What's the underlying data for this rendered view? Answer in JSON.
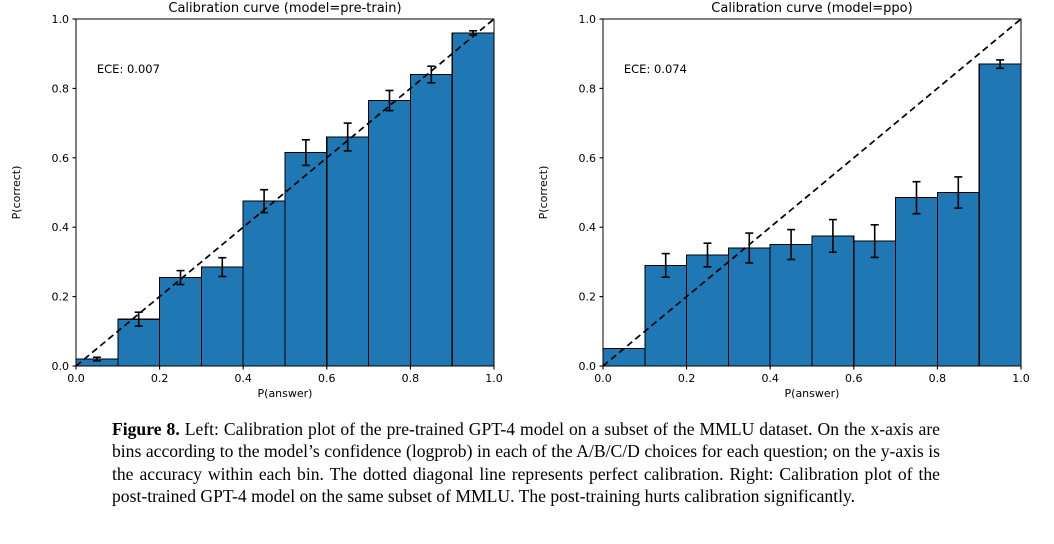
{
  "figure": {
    "caption_label": "Figure 8.",
    "caption_text": " Left: Calibration plot of the pre-trained GPT-4 model on a subset of the MMLU dataset. On the x-axis are bins according to the model’s confidence (logprob) in each of the A/B/C/D choices for each question; on the y-axis is the accuracy within each bin. The dotted diagonal line represents perfect calibration. Right: Calibration plot of the post-trained GPT-4 model on the same subset of MMLU. The post-training hurts calibration significantly."
  },
  "chart_data": [
    {
      "type": "bar",
      "title": "Calibration curve (model=pre-train)",
      "annotation": "ECE: 0.007",
      "xlabel": "P(answer)",
      "ylabel": "P(correct)",
      "xlim": [
        0.0,
        1.0
      ],
      "ylim": [
        0.0,
        1.0
      ],
      "ticks": [
        0.0,
        0.2,
        0.4,
        0.6,
        0.8,
        1.0
      ],
      "tick_labels": [
        "0.0",
        "0.2",
        "0.4",
        "0.6",
        "0.8",
        "1.0"
      ],
      "bin_edges": [
        0.0,
        0.1,
        0.2,
        0.3,
        0.4,
        0.5,
        0.6,
        0.7,
        0.8,
        0.9,
        1.0
      ],
      "values": [
        0.02,
        0.135,
        0.255,
        0.285,
        0.475,
        0.615,
        0.66,
        0.765,
        0.84,
        0.96
      ],
      "errors": [
        0.005,
        0.02,
        0.02,
        0.027,
        0.033,
        0.037,
        0.04,
        0.029,
        0.024,
        0.006
      ],
      "diagonal": true,
      "grid": false,
      "bar_color": "#1f77b4",
      "bar_edge_color": "#000000",
      "line_color": "#000000"
    },
    {
      "type": "bar",
      "title": "Calibration curve (model=ppo)",
      "annotation": "ECE: 0.074",
      "xlabel": "P(answer)",
      "ylabel": "P(correct)",
      "xlim": [
        0.0,
        1.0
      ],
      "ylim": [
        0.0,
        1.0
      ],
      "ticks": [
        0.0,
        0.2,
        0.4,
        0.6,
        0.8,
        1.0
      ],
      "tick_labels": [
        "0.0",
        "0.2",
        "0.4",
        "0.6",
        "0.8",
        "1.0"
      ],
      "bin_edges": [
        0.0,
        0.1,
        0.2,
        0.3,
        0.4,
        0.5,
        0.6,
        0.7,
        0.8,
        0.9,
        1.0
      ],
      "values": [
        0.05,
        0.29,
        0.32,
        0.34,
        0.35,
        0.375,
        0.36,
        0.485,
        0.5,
        0.87
      ],
      "errors": [
        0,
        0.034,
        0.034,
        0.043,
        0.043,
        0.047,
        0.047,
        0.046,
        0.045,
        0.012
      ],
      "diagonal": true,
      "grid": false,
      "bar_color": "#1f77b4",
      "bar_edge_color": "#000000",
      "line_color": "#000000"
    }
  ]
}
